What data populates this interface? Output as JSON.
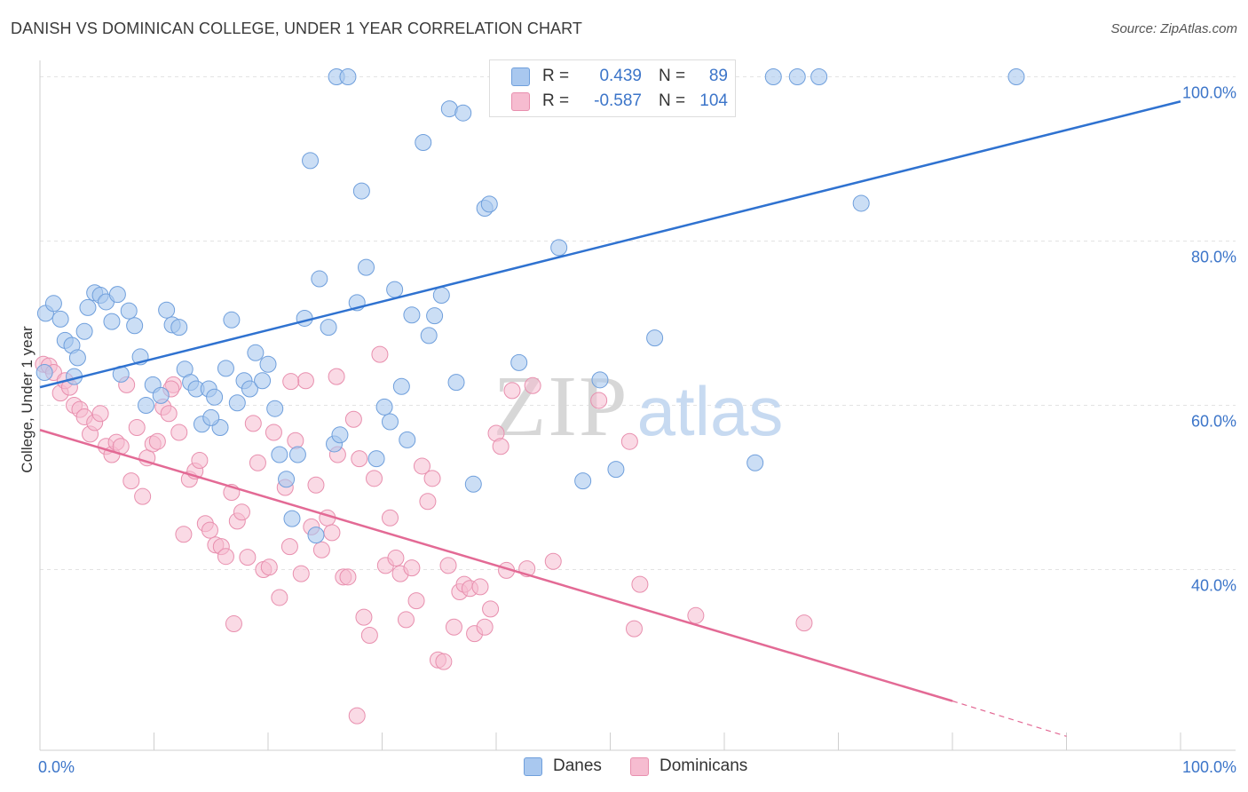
{
  "title": "DANISH VS DOMINICAN COLLEGE, UNDER 1 YEAR CORRELATION CHART",
  "source": "Source: ZipAtlas.com",
  "watermark": {
    "bold": "ZIP",
    "light": "atlas"
  },
  "legend": {
    "rows": [
      {
        "r_label": "R =",
        "r_value": "0.439",
        "n_label": "N =",
        "n_value": "89"
      },
      {
        "r_label": "R =",
        "r_value": "-0.587",
        "n_label": "N =",
        "n_value": "104"
      }
    ]
  },
  "colors": {
    "danes_fill": "#a9c8ef",
    "danes_stroke": "#6f9fdc",
    "danes_line": "#2f72d0",
    "dominicans_fill": "#f6bcd0",
    "dominicans_stroke": "#e88fae",
    "dominicans_line": "#e36a95",
    "axis_label": "#3c75c9",
    "grid": "#e3e3e3"
  },
  "chart_data": {
    "type": "scatter",
    "title": "DANISH VS DOMINICAN COLLEGE, UNDER 1 YEAR CORRELATION CHART",
    "xlabel": "",
    "ylabel": "College, Under 1 year",
    "xlim": [
      0,
      100
    ],
    "ylim": [
      18,
      102
    ],
    "x_tick_labels": [
      "0.0%",
      "100.0%"
    ],
    "y_ticks": [
      40,
      60,
      80,
      100
    ],
    "y_tick_labels": [
      "40.0%",
      "60.0%",
      "80.0%",
      "100.0%"
    ],
    "grid": true,
    "legend_position": "bottom-center",
    "series": [
      {
        "name": "Danes",
        "trend": {
          "x": [
            0,
            100
          ],
          "y": [
            62.2,
            97.0
          ]
        },
        "points": [
          [
            0.5,
            71.2
          ],
          [
            1.2,
            72.4
          ],
          [
            1.8,
            70.5
          ],
          [
            2.2,
            67.9
          ],
          [
            2.8,
            67.3
          ],
          [
            3.3,
            65.8
          ],
          [
            3.9,
            69.0
          ],
          [
            4.2,
            71.9
          ],
          [
            4.8,
            73.7
          ],
          [
            5.3,
            73.4
          ],
          [
            5.8,
            72.6
          ],
          [
            6.3,
            70.2
          ],
          [
            6.8,
            73.5
          ],
          [
            7.1,
            63.8
          ],
          [
            7.8,
            71.5
          ],
          [
            8.3,
            69.7
          ],
          [
            8.8,
            65.9
          ],
          [
            9.3,
            60.0
          ],
          [
            9.9,
            62.5
          ],
          [
            10.6,
            61.2
          ],
          [
            11.1,
            71.6
          ],
          [
            11.6,
            69.8
          ],
          [
            12.2,
            69.5
          ],
          [
            12.7,
            64.4
          ],
          [
            13.2,
            62.8
          ],
          [
            13.7,
            62.0
          ],
          [
            14.2,
            57.7
          ],
          [
            14.8,
            62.0
          ],
          [
            15.3,
            61.0
          ],
          [
            15.8,
            57.3
          ],
          [
            16.3,
            64.5
          ],
          [
            16.8,
            70.4
          ],
          [
            17.3,
            60.3
          ],
          [
            17.9,
            63.0
          ],
          [
            18.4,
            62.0
          ],
          [
            18.9,
            66.4
          ],
          [
            19.5,
            63.0
          ],
          [
            20.0,
            65.0
          ],
          [
            20.6,
            59.6
          ],
          [
            21.0,
            54.0
          ],
          [
            21.6,
            51.0
          ],
          [
            22.1,
            46.2
          ],
          [
            22.6,
            54.0
          ],
          [
            23.2,
            70.6
          ],
          [
            23.7,
            89.8
          ],
          [
            24.2,
            44.2
          ],
          [
            24.5,
            75.4
          ],
          [
            25.3,
            69.5
          ],
          [
            25.8,
            55.3
          ],
          [
            26.3,
            56.4
          ],
          [
            26.0,
            100.0
          ],
          [
            27.0,
            100.0
          ],
          [
            27.8,
            72.5
          ],
          [
            28.2,
            86.1
          ],
          [
            28.6,
            76.8
          ],
          [
            29.5,
            53.5
          ],
          [
            30.2,
            59.8
          ],
          [
            30.7,
            58.0
          ],
          [
            31.1,
            74.1
          ],
          [
            31.7,
            62.3
          ],
          [
            32.2,
            55.8
          ],
          [
            32.6,
            71.0
          ],
          [
            33.6,
            92.0
          ],
          [
            34.1,
            68.5
          ],
          [
            34.6,
            70.9
          ],
          [
            35.2,
            73.4
          ],
          [
            35.9,
            96.1
          ],
          [
            37.1,
            95.6
          ],
          [
            38.0,
            50.4
          ],
          [
            39.0,
            84.0
          ],
          [
            39.4,
            84.5
          ],
          [
            42.0,
            65.2
          ],
          [
            44.1,
            100.0
          ],
          [
            45.5,
            79.2
          ],
          [
            47.6,
            50.8
          ],
          [
            49.1,
            63.1
          ],
          [
            50.5,
            52.2
          ],
          [
            53.9,
            68.2
          ],
          [
            58.3,
            100.0
          ],
          [
            62.7,
            53.0
          ],
          [
            64.3,
            100.0
          ],
          [
            66.4,
            100.0
          ],
          [
            68.3,
            100.0
          ],
          [
            72.0,
            84.6
          ],
          [
            85.6,
            100.0
          ],
          [
            0.4,
            64.0
          ],
          [
            3.0,
            63.5
          ],
          [
            36.5,
            62.8
          ],
          [
            15.0,
            58.5
          ]
        ]
      },
      {
        "name": "Dominicans",
        "trend": {
          "x": [
            0,
            80
          ],
          "y": [
            57.0,
            24.0
          ]
        },
        "trend_dashed": {
          "x": [
            80,
            90
          ],
          "y": [
            24.0,
            19.7
          ]
        },
        "points": [
          [
            0.3,
            65.0
          ],
          [
            0.8,
            64.8
          ],
          [
            1.2,
            64.0
          ],
          [
            1.8,
            61.5
          ],
          [
            2.2,
            63.0
          ],
          [
            2.6,
            62.2
          ],
          [
            3.0,
            60.0
          ],
          [
            3.5,
            59.5
          ],
          [
            3.9,
            58.6
          ],
          [
            4.4,
            56.5
          ],
          [
            4.8,
            57.9
          ],
          [
            5.3,
            59.0
          ],
          [
            5.8,
            55.0
          ],
          [
            6.3,
            54.0
          ],
          [
            6.7,
            55.5
          ],
          [
            7.1,
            55.0
          ],
          [
            7.6,
            62.5
          ],
          [
            8.0,
            50.8
          ],
          [
            8.5,
            57.3
          ],
          [
            9.0,
            48.9
          ],
          [
            9.4,
            53.6
          ],
          [
            9.9,
            55.3
          ],
          [
            10.3,
            55.6
          ],
          [
            10.8,
            59.8
          ],
          [
            11.3,
            59.0
          ],
          [
            11.7,
            62.5
          ],
          [
            12.2,
            56.7
          ],
          [
            12.6,
            44.3
          ],
          [
            13.1,
            51.0
          ],
          [
            13.6,
            52.0
          ],
          [
            14.0,
            53.3
          ],
          [
            14.5,
            45.6
          ],
          [
            14.9,
            44.8
          ],
          [
            15.4,
            43.0
          ],
          [
            15.9,
            42.8
          ],
          [
            16.3,
            41.6
          ],
          [
            16.8,
            49.4
          ],
          [
            17.3,
            45.9
          ],
          [
            17.7,
            47.0
          ],
          [
            18.2,
            41.5
          ],
          [
            18.7,
            57.8
          ],
          [
            19.1,
            53.0
          ],
          [
            19.6,
            40.0
          ],
          [
            20.1,
            40.3
          ],
          [
            20.5,
            56.7
          ],
          [
            21.0,
            36.6
          ],
          [
            21.5,
            50.0
          ],
          [
            21.9,
            42.8
          ],
          [
            22.4,
            55.7
          ],
          [
            22.9,
            39.5
          ],
          [
            23.3,
            63.0
          ],
          [
            23.8,
            45.2
          ],
          [
            24.2,
            50.3
          ],
          [
            24.7,
            42.4
          ],
          [
            25.2,
            46.3
          ],
          [
            25.6,
            44.5
          ],
          [
            26.1,
            54.0
          ],
          [
            26.6,
            39.1
          ],
          [
            27.0,
            39.1
          ],
          [
            27.5,
            58.3
          ],
          [
            28.0,
            53.5
          ],
          [
            28.4,
            34.2
          ],
          [
            28.9,
            32.0
          ],
          [
            29.3,
            51.1
          ],
          [
            29.8,
            66.2
          ],
          [
            30.3,
            40.5
          ],
          [
            30.7,
            46.3
          ],
          [
            31.2,
            41.4
          ],
          [
            31.6,
            39.5
          ],
          [
            32.1,
            33.9
          ],
          [
            32.6,
            40.2
          ],
          [
            33.0,
            36.2
          ],
          [
            33.5,
            52.6
          ],
          [
            34.0,
            48.3
          ],
          [
            34.4,
            51.1
          ],
          [
            34.9,
            29.0
          ],
          [
            35.4,
            28.8
          ],
          [
            35.8,
            40.5
          ],
          [
            36.3,
            33.0
          ],
          [
            36.8,
            37.3
          ],
          [
            37.2,
            38.2
          ],
          [
            37.7,
            37.7
          ],
          [
            38.1,
            32.2
          ],
          [
            38.6,
            37.9
          ],
          [
            39.0,
            33.0
          ],
          [
            39.5,
            35.2
          ],
          [
            40.0,
            56.6
          ],
          [
            40.4,
            55.0
          ],
          [
            40.9,
            39.9
          ],
          [
            41.4,
            61.8
          ],
          [
            42.7,
            40.1
          ],
          [
            43.2,
            62.4
          ],
          [
            45.0,
            41.0
          ],
          [
            49.0,
            60.6
          ],
          [
            51.7,
            55.6
          ],
          [
            52.1,
            32.8
          ],
          [
            52.6,
            38.2
          ],
          [
            57.5,
            34.4
          ],
          [
            67.0,
            33.5
          ],
          [
            11.5,
            62.0
          ],
          [
            22.0,
            62.9
          ],
          [
            17.0,
            33.4
          ],
          [
            27.8,
            22.2
          ],
          [
            26.0,
            63.5
          ]
        ]
      }
    ]
  }
}
